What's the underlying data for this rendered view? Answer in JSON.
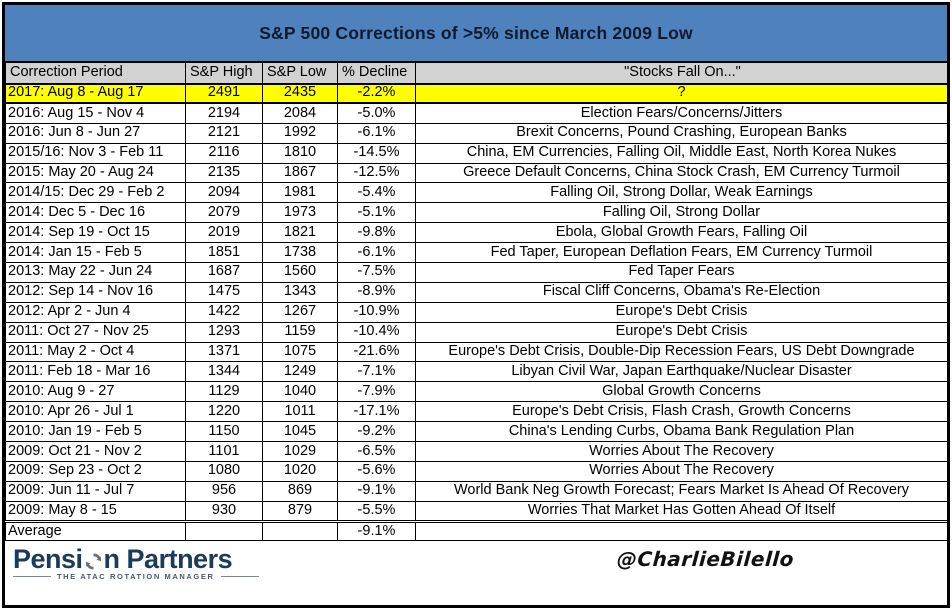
{
  "title": "S&P 500 Corrections of >5% since March 2009 Low",
  "colors": {
    "title_bg": "#4f81bd",
    "header_bg": "#d2d2d2",
    "highlight_bg": "#ffff00",
    "logo_navy": "#1b3a5c",
    "border": "#000000"
  },
  "chart_data": {
    "type": "table",
    "title": "S&P 500 Corrections of >5% since March 2009 Low",
    "columns": [
      "Correction Period",
      "S&P High",
      "S&P Low",
      "% Decline",
      "\"Stocks Fall On...\""
    ],
    "highlight_row_index": 0,
    "total_row_index": 22,
    "rows": [
      [
        "2017: Aug 8 - Aug 17",
        "2491",
        "2435",
        "-2.2%",
        "?"
      ],
      [
        "2016: Aug 15 - Nov 4",
        "2194",
        "2084",
        "-5.0%",
        "Election Fears/Concerns/Jitters"
      ],
      [
        "2016: Jun 8 - Jun 27",
        "2121",
        "1992",
        "-6.1%",
        "Brexit Concerns, Pound Crashing, European Banks"
      ],
      [
        "2015/16: Nov 3 - Feb 11",
        "2116",
        "1810",
        "-14.5%",
        "China, EM Currencies, Falling Oil, Middle East, North Korea Nukes"
      ],
      [
        "2015: May 20 - Aug 24",
        "2135",
        "1867",
        "-12.5%",
        "Greece Default Concerns, China Stock Crash, EM Currency Turmoil"
      ],
      [
        "2014/15: Dec 29 - Feb 2",
        "2094",
        "1981",
        "-5.4%",
        "Falling Oil, Strong Dollar, Weak Earnings"
      ],
      [
        "2014: Dec 5 - Dec 16",
        "2079",
        "1973",
        "-5.1%",
        "Falling Oil, Strong Dollar"
      ],
      [
        "2014: Sep 19 - Oct 15",
        "2019",
        "1821",
        "-9.8%",
        "Ebola, Global Growth Fears, Falling Oil"
      ],
      [
        "2014: Jan 15 - Feb 5",
        "1851",
        "1738",
        "-6.1%",
        "Fed Taper, European Deflation Fears, EM Currency Turmoil"
      ],
      [
        "2013: May 22 - Jun 24",
        "1687",
        "1560",
        "-7.5%",
        "Fed Taper Fears"
      ],
      [
        "2012: Sep 14 - Nov 16",
        "1475",
        "1343",
        "-8.9%",
        "Fiscal Cliff Concerns, Obama's Re-Election"
      ],
      [
        "2012: Apr 2 - Jun 4",
        "1422",
        "1267",
        "-10.9%",
        "Europe's Debt Crisis"
      ],
      [
        "2011: Oct 27 - Nov 25",
        "1293",
        "1159",
        "-10.4%",
        "Europe's Debt Crisis"
      ],
      [
        "2011: May 2 - Oct 4",
        "1371",
        "1075",
        "-21.6%",
        "Europe's Debt Crisis, Double-Dip Recession Fears, US Debt Downgrade"
      ],
      [
        "2011: Feb 18 - Mar 16",
        "1344",
        "1249",
        "-7.1%",
        "Libyan Civil War, Japan Earthquake/Nuclear Disaster"
      ],
      [
        "2010: Aug 9 - 27",
        "1129",
        "1040",
        "-7.9%",
        "Global Growth Concerns"
      ],
      [
        "2010: Apr 26 - Jul 1",
        "1220",
        "1011",
        "-17.1%",
        "Europe's Debt Crisis, Flash Crash, Growth Concerns"
      ],
      [
        "2010: Jan 19 - Feb 5",
        "1150",
        "1045",
        "-9.2%",
        "China's Lending Curbs, Obama Bank Regulation Plan"
      ],
      [
        "2009: Oct 21 - Nov 2",
        "1101",
        "1029",
        "-6.5%",
        "Worries About The Recovery"
      ],
      [
        "2009: Sep 23 - Oct 2",
        "1080",
        "1020",
        "-5.6%",
        "Worries About The Recovery"
      ],
      [
        "2009: Jun 11 - Jul 7",
        "956",
        "869",
        "-9.1%",
        "World Bank Neg Growth Forecast; Fears Market Is Ahead Of Recovery"
      ],
      [
        "2009: May 8 - 15",
        "930",
        "879",
        "-5.5%",
        "Worries That Market Has Gotten Ahead Of Itself"
      ],
      [
        "Average",
        "",
        "",
        "-9.1%",
        ""
      ]
    ]
  },
  "footer": {
    "logo_text_1": "Pensi",
    "logo_text_2": "n Partners",
    "logo_tagline": "THE ATAC ROTATION MANAGER",
    "handle": "@CharlieBilello"
  }
}
